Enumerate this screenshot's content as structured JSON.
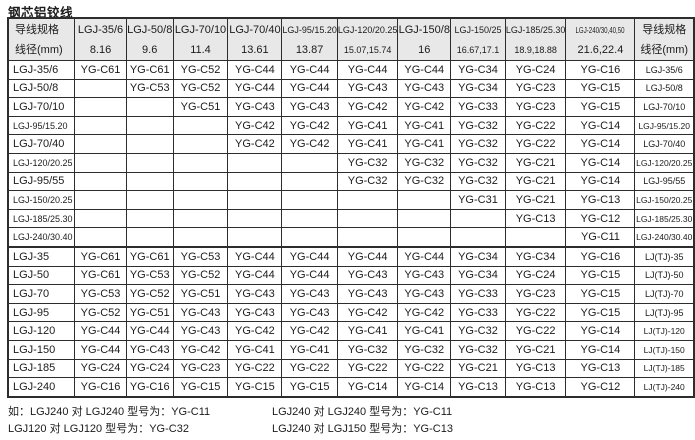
{
  "title": "钢芯铝铰线",
  "colors": {
    "header_bg": "#e8e8e8",
    "border": "#2d2d2d",
    "text": "#1b1b1b"
  },
  "table": {
    "corner_header": {
      "line1": "导线规格",
      "line2": "线径(mm)"
    },
    "columns": [
      {
        "name": "LGJ-35/6",
        "diameter": "8.16"
      },
      {
        "name": "LGJ-50/8",
        "diameter": "9.6"
      },
      {
        "name": "LGJ-70/10",
        "diameter": "11.4"
      },
      {
        "name": "LGJ-70/40",
        "diameter": "13.61"
      },
      {
        "name": "LGJ-95/15.20",
        "diameter": "13.87"
      },
      {
        "name": "LGJ-120/20.25",
        "diameter": "15.07,15.74"
      },
      {
        "name": "LGJ-150/8",
        "diameter": "16"
      },
      {
        "name": "LGJ-150/25",
        "diameter": "16.67,17.1"
      },
      {
        "name": "LGJ-185/25.30",
        "diameter": "18.9,18.88"
      },
      {
        "name": "LGJ-240/30,40,50",
        "diameter": "21.6,22.4"
      }
    ],
    "rows": [
      {
        "section": 1,
        "label": "LGJ-35/6",
        "cells": [
          "YG-C61",
          "YG-C61",
          "YG-C52",
          "YG-C44",
          "YG-C44",
          "YG-C44",
          "YG-C44",
          "YG-C34",
          "YG-C24",
          "YG-C16"
        ],
        "right_label": "LGJ-35/6"
      },
      {
        "section": 1,
        "label": "LGJ-50/8",
        "cells": [
          "",
          "YG-C53",
          "YG-C52",
          "YG-C44",
          "YG-C44",
          "YG-C43",
          "YG-C43",
          "YG-C34",
          "YG-C23",
          "YG-C15"
        ],
        "right_label": "LGJ-50/8"
      },
      {
        "section": 1,
        "label": "LGJ-70/10",
        "cells": [
          "",
          "",
          "YG-C51",
          "YG-C43",
          "YG-C43",
          "YG-C42",
          "YG-C42",
          "YG-C33",
          "YG-C23",
          "YG-C15"
        ],
        "right_label": "LGJ-70/10"
      },
      {
        "section": 1,
        "label": "LGJ-95/15.20",
        "cells": [
          "",
          "",
          "",
          "YG-C42",
          "YG-C42",
          "YG-C41",
          "YG-C41",
          "YG-C32",
          "YG-C22",
          "YG-C14"
        ],
        "right_label": "LGJ-95/15.20"
      },
      {
        "section": 1,
        "label": "LGJ-70/40",
        "cells": [
          "",
          "",
          "",
          "YG-C42",
          "YG-C42",
          "YG-C41",
          "YG-C41",
          "YG-C32",
          "YG-C22",
          "YG-C14"
        ],
        "right_label": "LGJ-70/40"
      },
      {
        "section": 1,
        "label": "LGJ-120/20.25",
        "cells": [
          "",
          "",
          "",
          "",
          "",
          "YG-C32",
          "YG-C32",
          "YG-C32",
          "YG-C21",
          "YG-C14"
        ],
        "right_label": "LGJ-120/20.25"
      },
      {
        "section": 1,
        "label": "LGJ-95/55",
        "cells": [
          "",
          "",
          "",
          "",
          "",
          "YG-C32",
          "YG-C32",
          "YG-C32",
          "YG-C21",
          "YG-C14"
        ],
        "right_label": "LGJ-95/55"
      },
      {
        "section": 1,
        "label": "LGJ-150/20.25",
        "cells": [
          "",
          "",
          "",
          "",
          "",
          "",
          "",
          "YG-C31",
          "YG-C21",
          "YG-C13"
        ],
        "right_label": "LGJ-150/20.25"
      },
      {
        "section": 1,
        "label": "LGJ-185/25.30",
        "cells": [
          "",
          "",
          "",
          "",
          "",
          "",
          "",
          "",
          "YG-C13",
          "YG-C12"
        ],
        "right_label": "LGJ-185/25.30"
      },
      {
        "section": 1,
        "label": "LGJ-240/30.40",
        "cells": [
          "",
          "",
          "",
          "",
          "",
          "",
          "",
          "",
          "",
          "YG-C11"
        ],
        "right_label": "LGJ-240/30.40"
      },
      {
        "section": 2,
        "label": "LGJ-35",
        "cells": [
          "YG-C61",
          "YG-C61",
          "YG-C53",
          "YG-C44",
          "YG-C44",
          "YG-C44",
          "YG-C44",
          "YG-C34",
          "YG-C34",
          "YG-C16"
        ],
        "right_label": "LJ(TJ)-35"
      },
      {
        "section": 2,
        "label": "LGJ-50",
        "cells": [
          "YG-C61",
          "YG-C53",
          "YG-C52",
          "YG-C44",
          "YG-C44",
          "YG-C43",
          "YG-C43",
          "YG-C34",
          "YG-C24",
          "YG-C15"
        ],
        "right_label": "LJ(TJ)-50"
      },
      {
        "section": 2,
        "label": "LGJ-70",
        "cells": [
          "YG-C53",
          "YG-C52",
          "YG-C51",
          "YG-C43",
          "YG-C43",
          "YG-C43",
          "YG-C43",
          "YG-C33",
          "YG-C23",
          "YG-C15"
        ],
        "right_label": "LJ(TJ)-70"
      },
      {
        "section": 2,
        "label": "LGJ-95",
        "cells": [
          "YG-C52",
          "YG-C51",
          "YG-C43",
          "YG-C43",
          "YG-C43",
          "YG-C42",
          "YG-C42",
          "YG-C33",
          "YG-C22",
          "YG-C15"
        ],
        "right_label": "LJ(TJ)-95"
      },
      {
        "section": 2,
        "label": "LGJ-120",
        "cells": [
          "YG-C44",
          "YG-C44",
          "YG-C43",
          "YG-C42",
          "YG-C42",
          "YG-C41",
          "YG-C41",
          "YG-C32",
          "YG-C22",
          "YG-C14"
        ],
        "right_label": "LJ(TJ)-120"
      },
      {
        "section": 2,
        "label": "LGJ-150",
        "cells": [
          "YG-C44",
          "YG-C43",
          "YG-C42",
          "YG-C41",
          "YG-C41",
          "YG-C32",
          "YG-C32",
          "YG-C32",
          "YG-C21",
          "YG-C14"
        ],
        "right_label": "LJ(TJ)-150"
      },
      {
        "section": 2,
        "label": "LGJ-185",
        "cells": [
          "YG-C24",
          "YG-C24",
          "YG-C23",
          "YG-C22",
          "YG-C22",
          "YG-C22",
          "YG-C22",
          "YG-C21",
          "YG-C13",
          "YG-C13"
        ],
        "right_label": "LJ(TJ)-185"
      },
      {
        "section": 2,
        "label": "LGJ-240",
        "cells": [
          "YG-C16",
          "YG-C16",
          "YG-C15",
          "YG-C15",
          "YG-C15",
          "YG-C14",
          "YG-C14",
          "YG-C13",
          "YG-C13",
          "YG-C12"
        ],
        "right_label": "LJ(TJ)-240"
      }
    ]
  },
  "notes": [
    {
      "left": "如：LGJ240 对 LGJ240 型号为：YG-C11",
      "right": "LGJ240 对 LGJ240 型号为：YG-C11"
    },
    {
      "left": "LGJ120 对 LGJ120 型号为：YG-C32",
      "right": "LGJ240 对 LGJ150 型号为：YG-C13"
    }
  ]
}
